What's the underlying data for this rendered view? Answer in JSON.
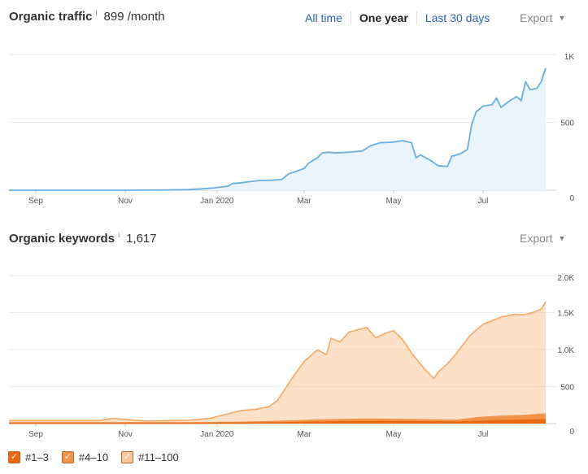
{
  "traffic": {
    "title": "Organic traffic",
    "info": "i",
    "value": "899 /month",
    "ranges": [
      "All time",
      "One year",
      "Last 30 days"
    ],
    "active_range": "One year",
    "export_label": "Export",
    "line_color": "#6aaee0",
    "fill_color": "#eaf4fc"
  },
  "keywords": {
    "title": "Organic keywords",
    "info": "i",
    "value": "1,617",
    "export_label": "Export",
    "legend": [
      {
        "label": "#1–3",
        "color": "#e8690f"
      },
      {
        "label": "#4–10",
        "color": "#f2944a"
      },
      {
        "label": "#11–100",
        "color": "#fcc79a"
      }
    ]
  },
  "chart_data": [
    {
      "type": "area",
      "title": "Organic traffic",
      "ylim": [
        0,
        1000
      ],
      "y_ticks": [
        {
          "v": 0,
          "label": "0"
        },
        {
          "v": 500,
          "label": "500"
        },
        {
          "v": 1000,
          "label": "1K"
        }
      ],
      "xlim": [
        0,
        12
      ],
      "x_ticks": [
        {
          "v": 0.6,
          "label": "Sep"
        },
        {
          "v": 2.6,
          "label": "Nov"
        },
        {
          "v": 4.65,
          "label": "Jan 2020"
        },
        {
          "v": 6.6,
          "label": "Mar"
        },
        {
          "v": 8.6,
          "label": "May"
        },
        {
          "v": 10.6,
          "label": "Jul"
        }
      ],
      "grid": true,
      "series": [
        {
          "color": "#6aaee0",
          "x": [
            0,
            2.5,
            3.5,
            4.0,
            4.3,
            4.6,
            4.9,
            5.0,
            5.2,
            5.3,
            5.6,
            5.9,
            6.1,
            6.25,
            6.6,
            6.7,
            6.9,
            7.0,
            7.15,
            7.3,
            7.6,
            7.9,
            8.1,
            8.3,
            8.6,
            8.8,
            9.0,
            9.1,
            9.2,
            9.4,
            9.6,
            9.8,
            9.9,
            10.1,
            10.25,
            10.35,
            10.45,
            10.6,
            10.8,
            10.9,
            11.0,
            11.2,
            11.35,
            11.45,
            11.55,
            11.65,
            11.8,
            11.9,
            12.0
          ],
          "y": [
            0,
            0,
            2,
            5,
            10,
            18,
            30,
            50,
            55,
            60,
            72,
            75,
            80,
            120,
            160,
            200,
            240,
            275,
            280,
            275,
            280,
            290,
            330,
            350,
            355,
            365,
            350,
            240,
            260,
            225,
            180,
            175,
            250,
            270,
            300,
            490,
            580,
            620,
            630,
            680,
            610,
            660,
            690,
            660,
            800,
            740,
            750,
            800,
            900
          ]
        }
      ]
    },
    {
      "type": "area",
      "title": "Organic keywords",
      "ylim": [
        0,
        2000
      ],
      "y_ticks": [
        {
          "v": 0,
          "label": "0"
        },
        {
          "v": 500,
          "label": "500"
        },
        {
          "v": 1000,
          "label": "1.0K"
        },
        {
          "v": 1500,
          "label": "1.5K"
        },
        {
          "v": 2000,
          "label": "2.0K"
        }
      ],
      "xlim": [
        0,
        12
      ],
      "x_ticks": [
        {
          "v": 0.6,
          "label": "Sep"
        },
        {
          "v": 2.6,
          "label": "Nov"
        },
        {
          "v": 4.65,
          "label": "Jan 2020"
        },
        {
          "v": 6.6,
          "label": "Mar"
        },
        {
          "v": 8.6,
          "label": "May"
        },
        {
          "v": 10.6,
          "label": "Jul"
        }
      ],
      "grid": true,
      "stacked": true,
      "series": [
        {
          "name": "#1–3",
          "color": "#e8690f",
          "x": [
            0,
            4,
            5,
            6,
            7,
            8,
            9,
            10,
            10.5,
            11,
            11.5,
            12
          ],
          "y": [
            5,
            5,
            6,
            10,
            20,
            25,
            25,
            20,
            30,
            40,
            45,
            55
          ]
        },
        {
          "name": "#4–10",
          "color": "#f2944a",
          "x": [
            0,
            4,
            5,
            6,
            7,
            8,
            9,
            10,
            10.5,
            11,
            11.5,
            12
          ],
          "y": [
            5,
            5,
            8,
            20,
            30,
            35,
            30,
            25,
            50,
            60,
            65,
            75
          ]
        },
        {
          "name": "#11–100",
          "color": "#fcc79a",
          "x": [
            0,
            2.0,
            2.3,
            2.6,
            2.9,
            3.1,
            4.0,
            4.5,
            4.9,
            5.2,
            5.5,
            5.8,
            6.0,
            6.3,
            6.6,
            6.9,
            7.1,
            7.2,
            7.4,
            7.6,
            8.0,
            8.2,
            8.4,
            8.6,
            8.8,
            9.0,
            9.3,
            9.5,
            9.6,
            9.8,
            10.0,
            10.3,
            10.6,
            10.8,
            11.0,
            11.3,
            11.5,
            11.7,
            11.9,
            12.0
          ],
          "y": [
            30,
            30,
            60,
            50,
            30,
            25,
            35,
            60,
            120,
            160,
            170,
            200,
            280,
            550,
            800,
            950,
            880,
            1100,
            1050,
            1180,
            1240,
            1100,
            1160,
            1200,
            1080,
            900,
            680,
            560,
            650,
            760,
            900,
            1120,
            1260,
            1300,
            1340,
            1370,
            1360,
            1380,
            1420,
            1520
          ]
        }
      ]
    }
  ]
}
